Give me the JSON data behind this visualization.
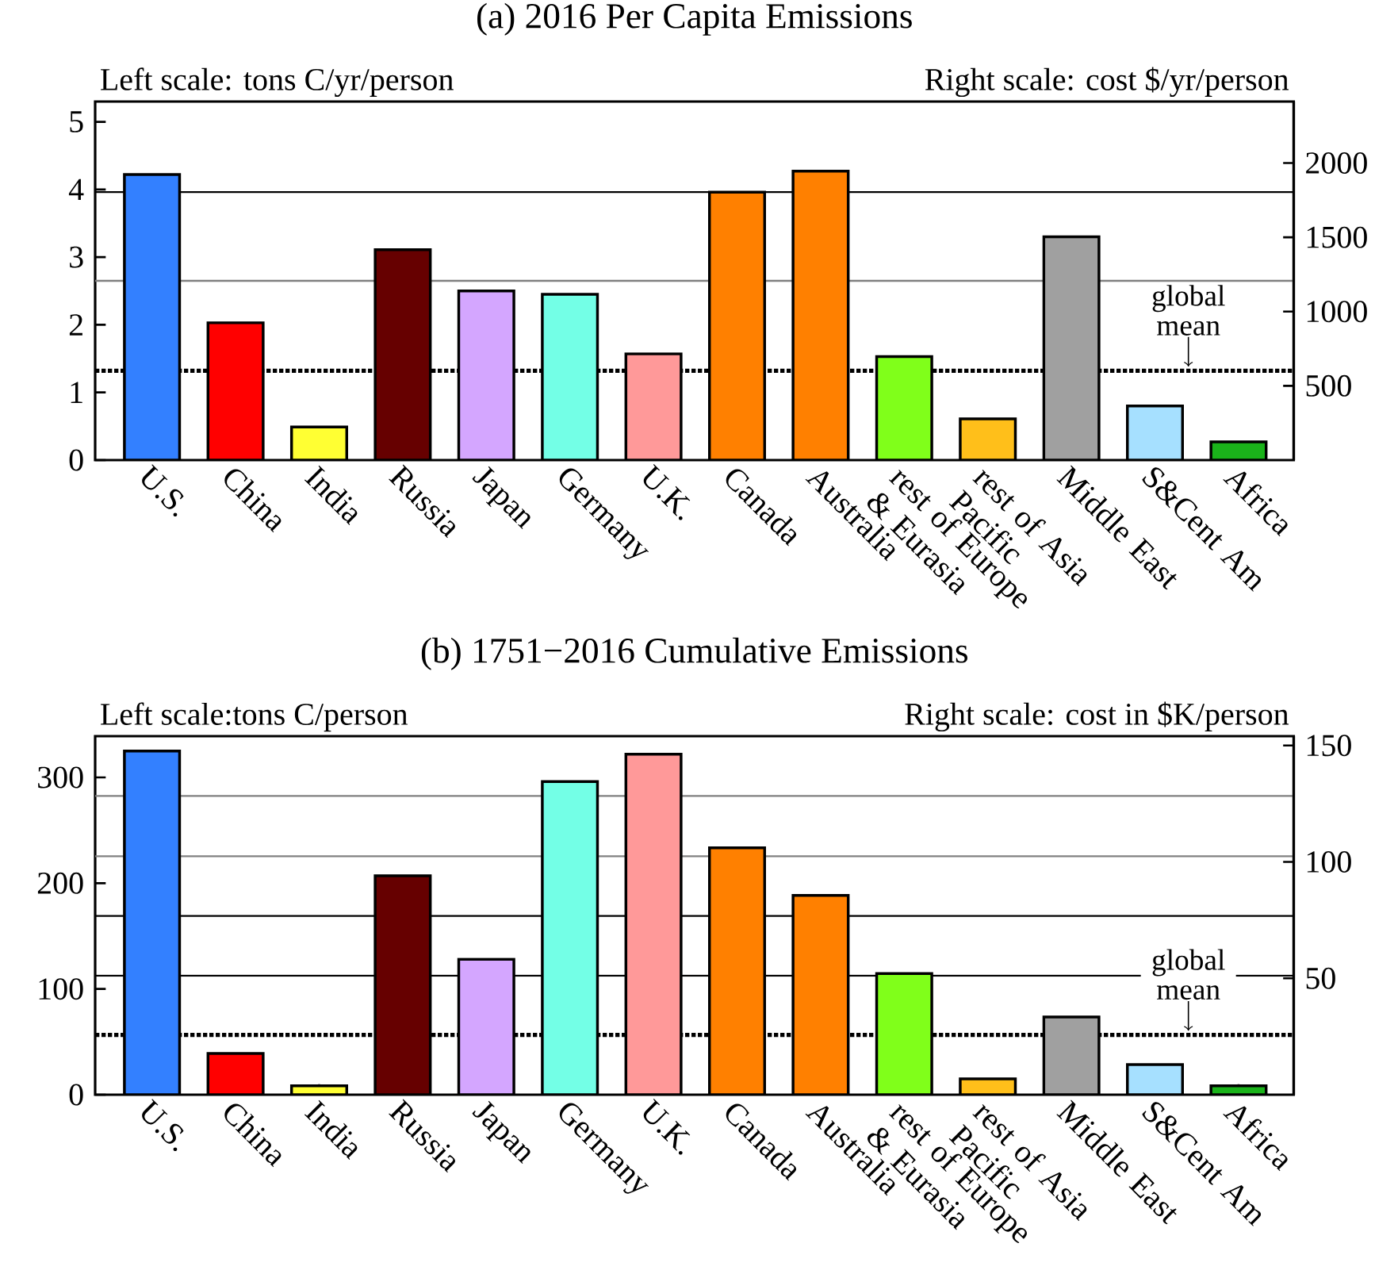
{
  "chart_data": [
    {
      "type": "bar",
      "title": "(a) 2016 Per Capita Emissions",
      "ylabel": "Left scale: tons C/yr/person",
      "y2label": "Right scale: cost $/yr/person",
      "categories": [
        "U.S.",
        "China",
        "India",
        "Russia",
        "Japan",
        "Germany",
        "U.K.",
        "Canada",
        "Australia",
        "rest of Europe & Eurasia",
        "rest of Asia Pacific",
        "Middle East",
        "S&Cent Am",
        "Africa"
      ],
      "values": [
        4.22,
        2.03,
        0.49,
        3.11,
        2.5,
        2.45,
        1.57,
        3.96,
        4.27,
        1.53,
        0.61,
        3.3,
        0.8,
        0.27
      ],
      "colors": [
        "#3380ff",
        "#ff0000",
        "#ffff33",
        "#660000",
        "#d4a6ff",
        "#73ffe6",
        "#ff9999",
        "#ff8000",
        "#ff8000",
        "#80ff1a",
        "#ffbf1a",
        "#a0a0a0",
        "#a6e0ff",
        "#1ab31a"
      ],
      "ylim": [
        0,
        5.3
      ],
      "yticks": [
        0,
        1,
        2,
        3,
        4,
        5
      ],
      "y2lim": [
        0,
        2414
      ],
      "y2ticks": [
        500,
        1000,
        1500,
        2000
      ],
      "ref_lines": [
        {
          "axis": "y",
          "value": 3.96,
          "color": "#000000",
          "line_style": "solid"
        },
        {
          "axis": "y",
          "value": 2.65,
          "color": "#808080",
          "line_style": "solid"
        },
        {
          "axis": "y",
          "value": 1.32,
          "label": "global mean",
          "color": "#000000",
          "line_style": "dotted"
        }
      ]
    },
    {
      "type": "bar",
      "title": "(b) 1751−2016 Cumulative Emissions",
      "ylabel": "Left scale:tons C/person",
      "y2label": "Right scale: cost in $K/person",
      "categories": [
        "U.S.",
        "China",
        "India",
        "Russia",
        "Japan",
        "Germany",
        "U.K.",
        "Canada",
        "Australia",
        "rest of Europe & Eurasia",
        "rest of Asia Pacific",
        "Middle East",
        "S&Cent Am",
        "Africa"
      ],
      "values": [
        325,
        39,
        8.5,
        207,
        128,
        296,
        322,
        233.5,
        188.5,
        114.5,
        15,
        73.5,
        28.5,
        8.5
      ],
      "colors": [
        "#3380ff",
        "#ff0000",
        "#ffff33",
        "#660000",
        "#d4a6ff",
        "#73ffe6",
        "#ff9999",
        "#ff8000",
        "#ff8000",
        "#80ff1a",
        "#ffbf1a",
        "#a0a0a0",
        "#a6e0ff",
        "#1ab31a"
      ],
      "ylim": [
        0,
        339
      ],
      "yticks": [
        0,
        100,
        200,
        300
      ],
      "y2lim": [
        0,
        154
      ],
      "y2ticks": [
        50,
        100,
        150
      ],
      "ref_lines": [
        {
          "axis": "y",
          "value": 282.5,
          "color": "#808080",
          "line_style": "solid"
        },
        {
          "axis": "y",
          "value": 225.5,
          "color": "#808080",
          "line_style": "solid"
        },
        {
          "axis": "y",
          "value": 169,
          "color": "#000000",
          "line_style": "solid"
        },
        {
          "axis": "y",
          "value": 112.5,
          "color": "#000000",
          "line_style": "solid"
        },
        {
          "axis": "y",
          "value": 56.5,
          "label": "global mean",
          "color": "#000000",
          "line_style": "dotted"
        }
      ]
    }
  ]
}
